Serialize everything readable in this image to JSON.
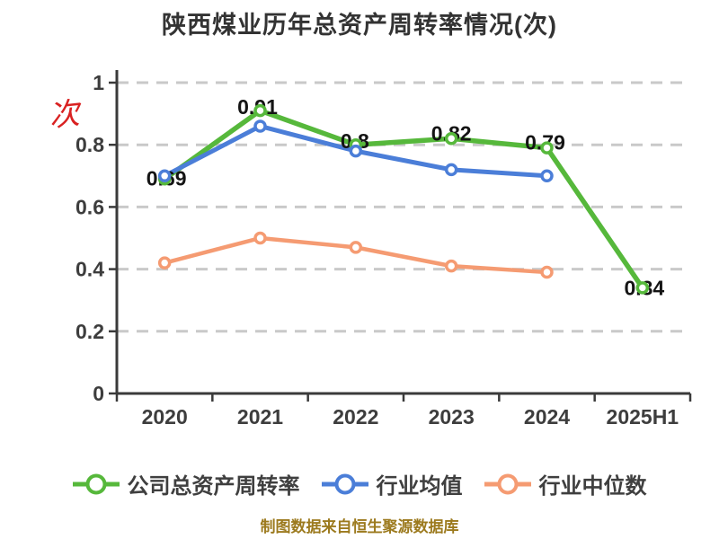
{
  "footer": {
    "text": "制图数据来自恒生聚源数据库",
    "color": "#9C7A1E"
  },
  "chart_data": {
    "type": "line",
    "title": "陕西煤业历年总资产周转率情况(次)",
    "categories": [
      "2020",
      "2021",
      "2022",
      "2023",
      "2024",
      "2025H1"
    ],
    "series": [
      {
        "id": "company-total-asset-turnover",
        "name": "公司总资产周转率",
        "color": "#56B83B",
        "values": [
          0.69,
          0.91,
          0.8,
          0.82,
          0.79,
          0.34
        ],
        "point_labels": [
          "0.69",
          "0.91",
          "0.8",
          "0.82",
          "0.79",
          "0.34"
        ]
      },
      {
        "id": "industry-average",
        "name": "行业均值",
        "color": "#4B7ED8",
        "values": [
          0.7,
          0.86,
          0.78,
          0.72,
          0.7,
          null
        ],
        "point_labels": null
      },
      {
        "id": "industry-median",
        "name": "行业中位数",
        "color": "#F59B72",
        "values": [
          0.42,
          0.5,
          0.47,
          0.41,
          0.39,
          null
        ],
        "point_labels": null
      }
    ],
    "ylim": [
      0,
      1
    ],
    "yticks": [
      0,
      0.2,
      0.4,
      0.6,
      0.8,
      1
    ],
    "ytick_labels": [
      "0",
      "0.2",
      "0.4",
      "0.6",
      "0.8",
      "1"
    ],
    "y_unit": "次",
    "grid": "dashed-horizontal",
    "gridline_color": "#C9C9C9",
    "axis_color": "#3A3A3A",
    "legend_position": "bottom"
  }
}
